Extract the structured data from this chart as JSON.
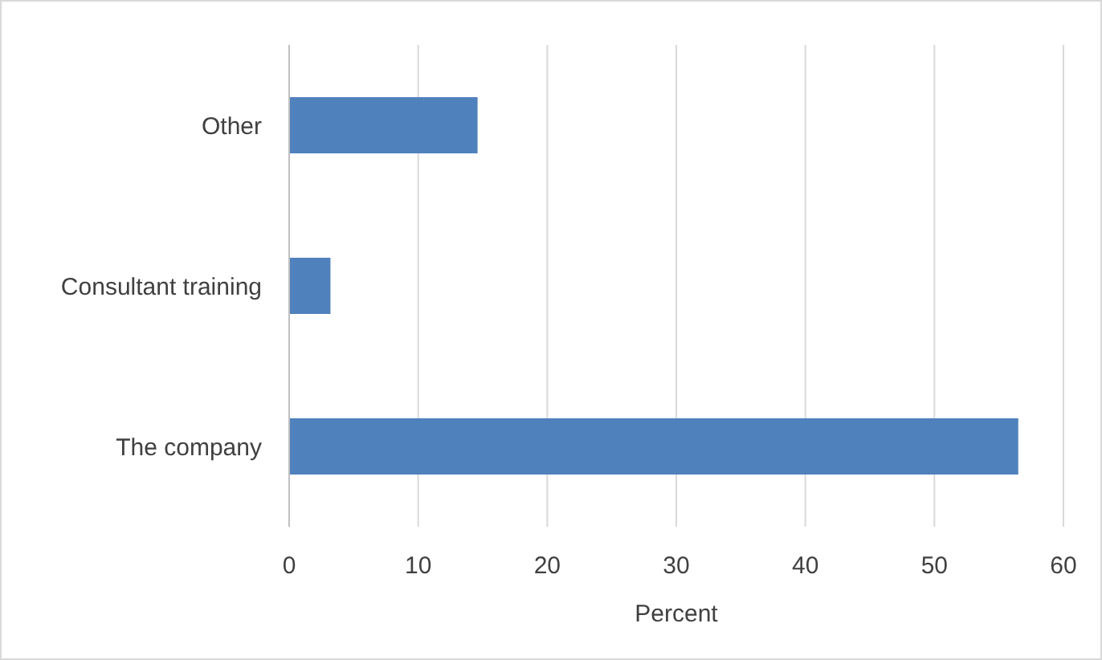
{
  "chart_data": {
    "type": "bar",
    "orientation": "horizontal",
    "categories": [
      "Other",
      "Consultant training",
      "The company"
    ],
    "values": [
      14.6,
      3.2,
      56.5
    ],
    "color": "#4f81bd",
    "xlim": [
      0,
      60
    ],
    "xticks": [
      0,
      10,
      20,
      30,
      40,
      50,
      60
    ],
    "xlabel": "Percent",
    "grid": "x"
  }
}
